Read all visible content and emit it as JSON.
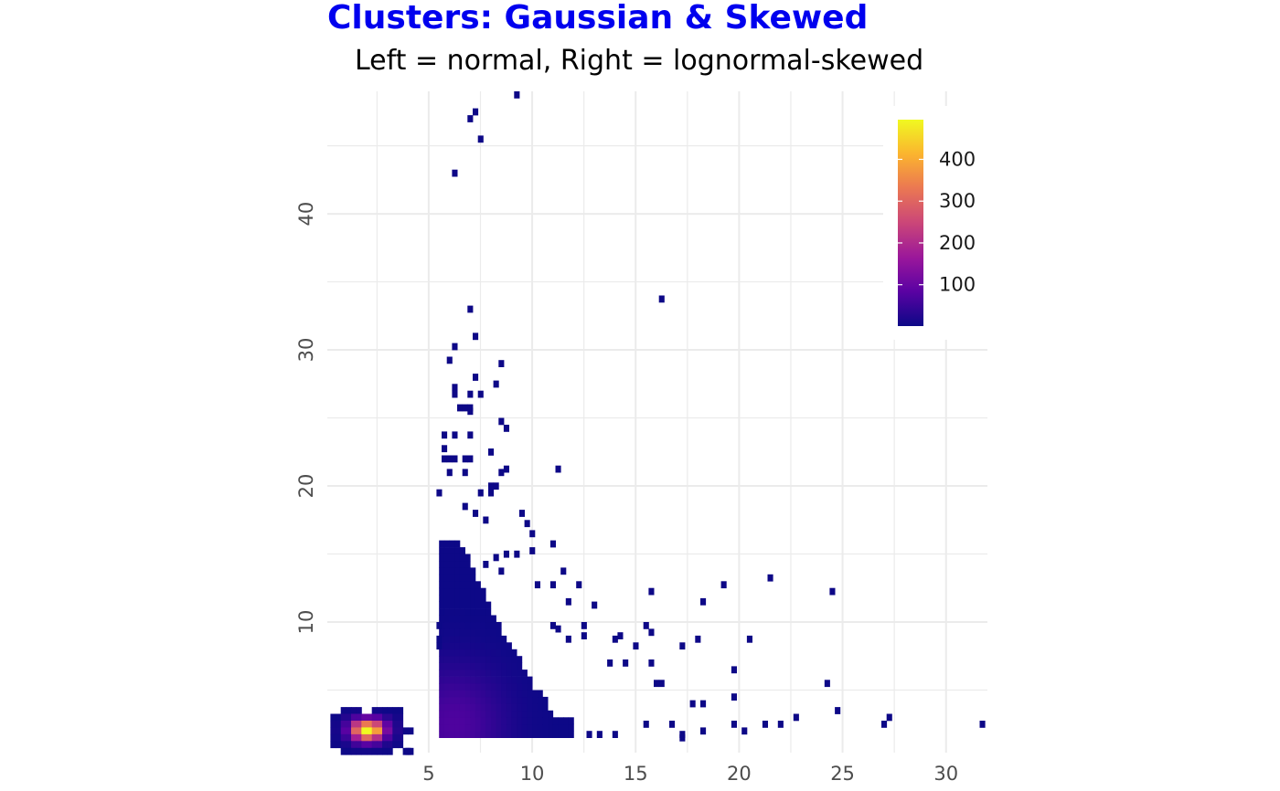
{
  "chart_data": {
    "type": "heatmap",
    "title": "Clusters: Gaussian & Skewed",
    "subtitle": "Left = normal, Right = lognormal-skewed",
    "xlabel": "",
    "ylabel": "",
    "xlim": [
      0.1,
      32
    ],
    "ylim": [
      0.4,
      49
    ],
    "x_ticks": [
      5,
      10,
      15,
      20,
      25,
      30
    ],
    "y_ticks": [
      10,
      20,
      30,
      40
    ],
    "grid": true,
    "legend": {
      "position": "top-right",
      "type": "colorbar",
      "ticks": [
        100,
        200,
        300,
        400
      ],
      "min": 1,
      "max": 495,
      "colors": [
        "#0d0887",
        "#5b02a3",
        "#9a179b",
        "#cb4678",
        "#eb7852",
        "#fbb32f",
        "#f0f921"
      ]
    },
    "colors": {
      "title": "#0000ee",
      "grid": "#ebebeb"
    },
    "gaussian_cluster": {
      "center": [
        2.0,
        2.0
      ],
      "peak_count": 495,
      "bins": [
        [
          1.0,
          3.5,
          4
        ],
        [
          1.5,
          3.5,
          8
        ],
        [
          2.5,
          3.5,
          6
        ],
        [
          3.0,
          3.5,
          3
        ],
        [
          3.5,
          3.5,
          2
        ],
        [
          0.5,
          3.0,
          3
        ],
        [
          1.0,
          3.0,
          25
        ],
        [
          1.5,
          3.0,
          70
        ],
        [
          2.0,
          3.0,
          95
        ],
        [
          2.5,
          3.0,
          80
        ],
        [
          3.0,
          3.0,
          35
        ],
        [
          3.5,
          3.0,
          10
        ],
        [
          0.5,
          2.5,
          8
        ],
        [
          1.0,
          2.5,
          60
        ],
        [
          1.5,
          2.5,
          220
        ],
        [
          2.0,
          2.5,
          330
        ],
        [
          2.5,
          2.5,
          250
        ],
        [
          3.0,
          2.5,
          90
        ],
        [
          3.5,
          2.5,
          20
        ],
        [
          0.5,
          2.0,
          10
        ],
        [
          1.0,
          2.0,
          80
        ],
        [
          1.5,
          2.0,
          300
        ],
        [
          2.0,
          2.0,
          495
        ],
        [
          2.5,
          2.0,
          380
        ],
        [
          3.0,
          2.0,
          120
        ],
        [
          3.5,
          2.0,
          25
        ],
        [
          4.0,
          2.0,
          3
        ],
        [
          0.5,
          1.5,
          6
        ],
        [
          1.0,
          1.5,
          50
        ],
        [
          1.5,
          1.5,
          180
        ],
        [
          2.0,
          1.5,
          300
        ],
        [
          2.5,
          1.5,
          210
        ],
        [
          3.0,
          1.5,
          70
        ],
        [
          3.5,
          1.5,
          15
        ],
        [
          0.5,
          1.0,
          2
        ],
        [
          1.0,
          1.0,
          15
        ],
        [
          1.5,
          1.0,
          55
        ],
        [
          2.0,
          1.0,
          80
        ],
        [
          2.5,
          1.0,
          60
        ],
        [
          3.0,
          1.0,
          20
        ],
        [
          3.5,
          1.0,
          5
        ],
        [
          1.0,
          0.5,
          2
        ],
        [
          1.5,
          0.5,
          5
        ],
        [
          2.0,
          0.5,
          6
        ],
        [
          2.5,
          0.5,
          4
        ],
        [
          3.0,
          0.5,
          2
        ],
        [
          4.0,
          0.5,
          1
        ]
      ]
    },
    "skewed_cluster": {
      "x_min": 5.0,
      "y_min": 1.5,
      "peak_count": 70,
      "scatter_bins": [
        [
          9.25,
          48.75
        ],
        [
          7.25,
          47.5
        ],
        [
          7.0,
          47.0
        ],
        [
          7.5,
          45.5
        ],
        [
          6.25,
          43.0
        ],
        [
          16.25,
          33.75
        ],
        [
          7.0,
          33.0
        ],
        [
          7.25,
          31.0
        ],
        [
          6.25,
          30.25
        ],
        [
          6.0,
          29.25
        ],
        [
          8.5,
          29.0
        ],
        [
          7.25,
          28.0
        ],
        [
          8.25,
          27.5
        ],
        [
          6.25,
          27.25
        ],
        [
          6.25,
          26.75
        ],
        [
          7.0,
          26.75
        ],
        [
          7.5,
          26.75
        ],
        [
          6.5,
          25.75
        ],
        [
          6.75,
          25.75
        ],
        [
          7.0,
          25.75
        ],
        [
          7.0,
          25.5
        ],
        [
          8.5,
          24.75
        ],
        [
          8.75,
          24.25
        ],
        [
          5.75,
          23.75
        ],
        [
          6.25,
          23.75
        ],
        [
          7.0,
          23.75
        ],
        [
          5.75,
          22.75
        ],
        [
          8.0,
          22.5
        ],
        [
          5.75,
          22.0
        ],
        [
          6.0,
          22.0
        ],
        [
          6.25,
          22.0
        ],
        [
          6.75,
          22.0
        ],
        [
          7.0,
          22.0
        ],
        [
          11.25,
          21.25
        ],
        [
          8.75,
          21.25
        ],
        [
          6.0,
          21.0
        ],
        [
          6.75,
          21.0
        ],
        [
          8.5,
          21.0
        ],
        [
          8.0,
          20.0
        ],
        [
          8.25,
          20.0
        ],
        [
          5.5,
          19.5
        ],
        [
          7.5,
          19.5
        ],
        [
          8.0,
          19.5
        ],
        [
          6.75,
          18.5
        ],
        [
          7.25,
          18.0
        ],
        [
          9.5,
          18.0
        ],
        [
          7.75,
          17.5
        ],
        [
          9.75,
          17.25
        ],
        [
          10.0,
          16.5
        ],
        [
          11.0,
          15.75
        ],
        [
          10.0,
          15.25
        ],
        [
          8.75,
          15.0
        ],
        [
          9.25,
          15.0
        ],
        [
          8.25,
          14.75
        ],
        [
          7.75,
          14.25
        ],
        [
          11.5,
          13.75
        ],
        [
          8.5,
          13.75
        ],
        [
          21.5,
          13.25
        ],
        [
          10.25,
          12.75
        ],
        [
          11.0,
          12.75
        ],
        [
          12.25,
          12.75
        ],
        [
          19.25,
          12.75
        ],
        [
          15.75,
          12.25
        ],
        [
          24.5,
          12.25
        ],
        [
          11.75,
          11.5
        ],
        [
          13.0,
          11.25
        ],
        [
          18.25,
          11.5
        ],
        [
          5.5,
          9.75
        ],
        [
          11.0,
          9.75
        ],
        [
          12.5,
          9.75
        ],
        [
          15.5,
          9.75
        ],
        [
          11.25,
          9.5
        ],
        [
          14.25,
          9.0
        ],
        [
          12.5,
          9.0
        ],
        [
          15.75,
          9.25
        ],
        [
          5.5,
          8.75
        ],
        [
          5.5,
          8.25
        ],
        [
          11.75,
          8.75
        ],
        [
          15.0,
          8.25
        ],
        [
          17.25,
          8.25
        ],
        [
          18.0,
          8.75
        ],
        [
          20.5,
          8.75
        ],
        [
          14.0,
          8.75
        ],
        [
          14.5,
          7.0
        ],
        [
          13.75,
          7.0
        ],
        [
          15.75,
          7.0
        ],
        [
          19.75,
          6.5
        ],
        [
          24.25,
          5.5
        ],
        [
          16.25,
          5.5
        ],
        [
          16.0,
          5.5
        ],
        [
          18.25,
          4.0
        ],
        [
          17.75,
          4.0
        ],
        [
          19.75,
          4.5
        ],
        [
          24.75,
          3.5
        ],
        [
          27.25,
          3.0
        ],
        [
          27.0,
          2.5
        ],
        [
          22.75,
          3.0
        ],
        [
          31.75,
          2.5
        ],
        [
          21.25,
          2.5
        ],
        [
          22.0,
          2.5
        ],
        [
          19.75,
          2.5
        ],
        [
          18.25,
          2.0
        ],
        [
          20.25,
          2.0
        ],
        [
          17.25,
          1.75
        ],
        [
          17.25,
          1.5
        ],
        [
          16.75,
          2.5
        ],
        [
          15.5,
          2.5
        ],
        [
          13.25,
          1.75
        ],
        [
          12.75,
          1.75
        ],
        [
          14.0,
          1.75
        ],
        [
          4.0,
          0.5
        ]
      ]
    }
  }
}
